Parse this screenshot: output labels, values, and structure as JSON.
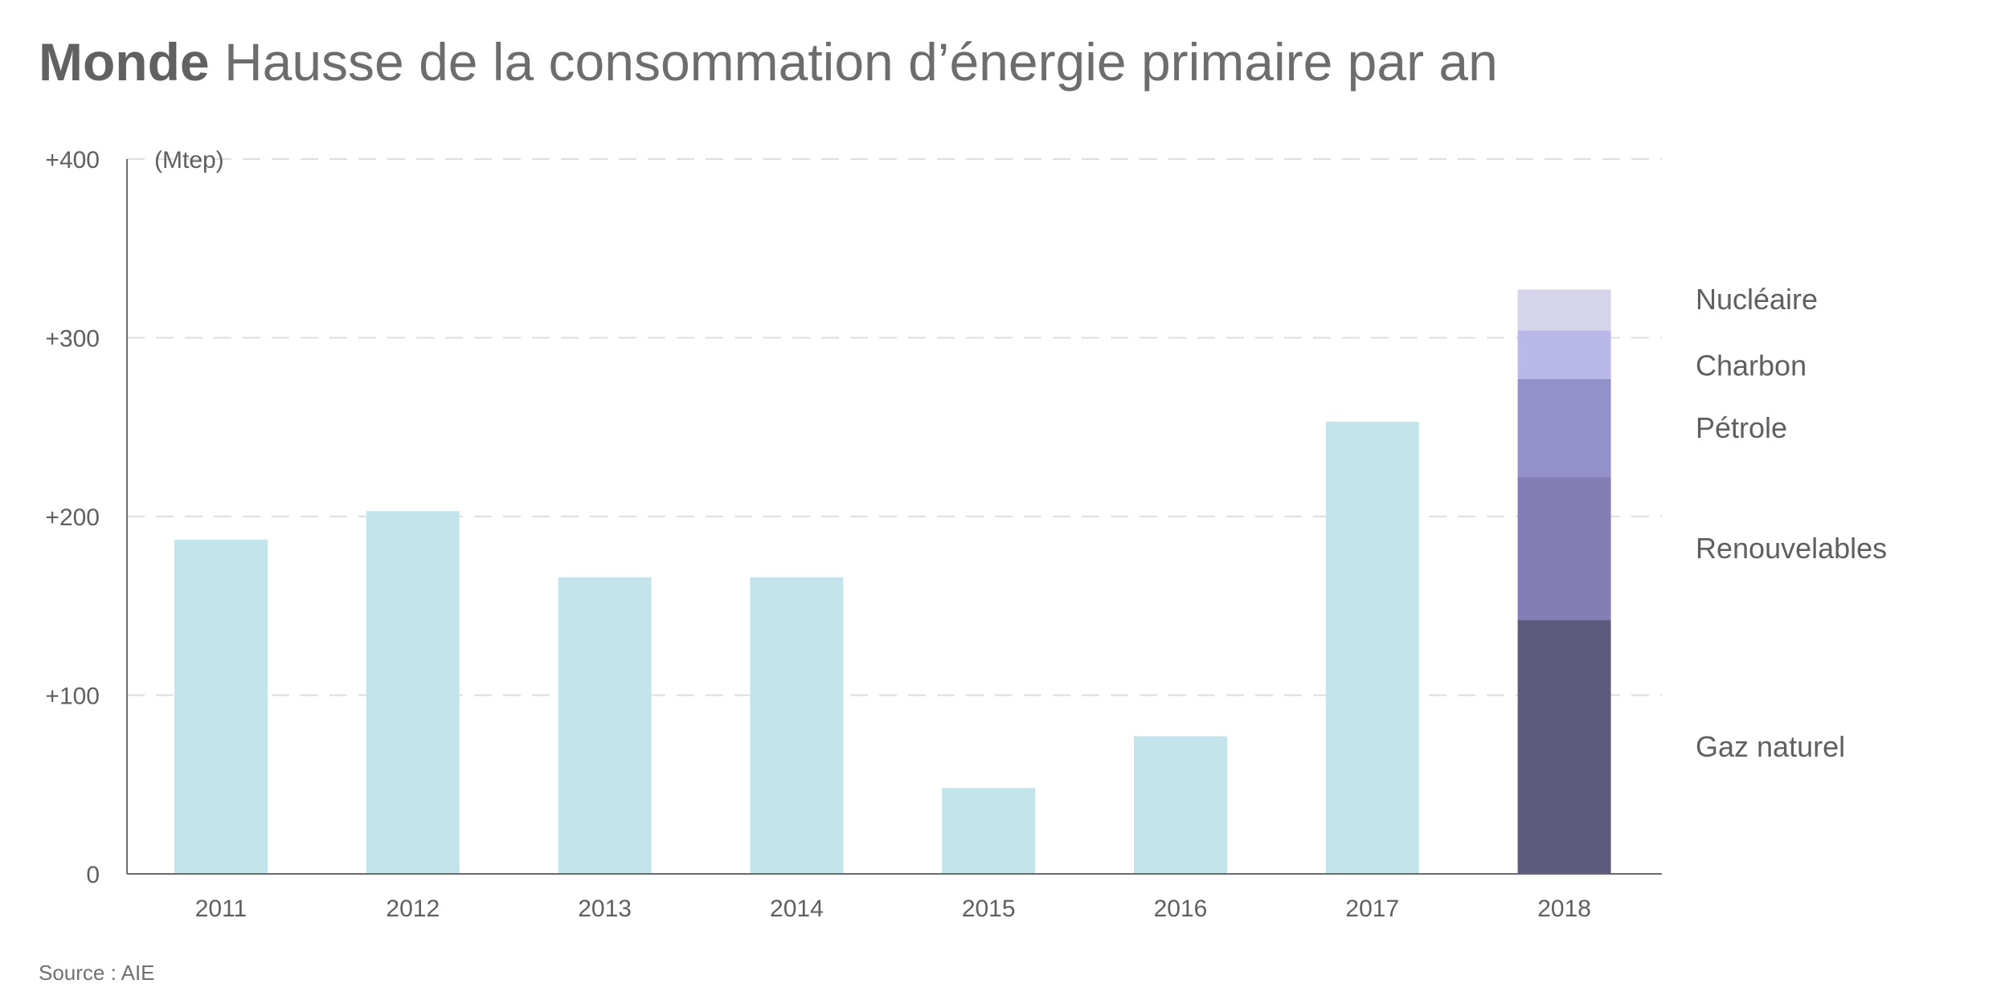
{
  "title": {
    "bold": "Monde",
    "rest": "Hausse de la consommation d’énergie primaire par an"
  },
  "source": "Source : AIE",
  "colors": {
    "bar": "#c2e4ea",
    "axis": "#6b6b6b",
    "grid": "#dedede",
    "text": "#5f5f5f",
    "gaz": "#5e5a7e",
    "renouvelables": "#857db5",
    "petrole": "#9490c9",
    "charbon": "#bab8e8",
    "nucleaire": "#d6d4ea"
  },
  "chart_data": {
    "type": "bar",
    "title": "Monde Hausse de la consommation d’énergie primaire par an",
    "unit_label": "(Mtep)",
    "xlabel": "",
    "ylabel": "(Mtep)",
    "ylim": [
      0,
      400
    ],
    "yticks": [
      {
        "value": 0,
        "label": "0"
      },
      {
        "value": 100,
        "label": "+100"
      },
      {
        "value": 200,
        "label": "+200"
      },
      {
        "value": 300,
        "label": "+300"
      },
      {
        "value": 400,
        "label": "+400"
      }
    ],
    "grid": true,
    "categories": [
      "2011",
      "2012",
      "2013",
      "2014",
      "2015",
      "2016",
      "2017",
      "2018"
    ],
    "values": [
      187,
      203,
      166,
      166,
      48,
      77,
      253,
      327
    ],
    "stacked_category": "2018",
    "stack": [
      {
        "name": "Gaz naturel",
        "color_key": "gaz",
        "value": 142
      },
      {
        "name": "Renouvelables",
        "color_key": "renouvelables",
        "value": 80
      },
      {
        "name": "Pétrole",
        "color_key": "petrole",
        "value": 55
      },
      {
        "name": "Charbon",
        "color_key": "charbon",
        "value": 27
      },
      {
        "name": "Nucléaire",
        "color_key": "nucleaire",
        "value": 23
      }
    ],
    "legend_placement": "right"
  }
}
